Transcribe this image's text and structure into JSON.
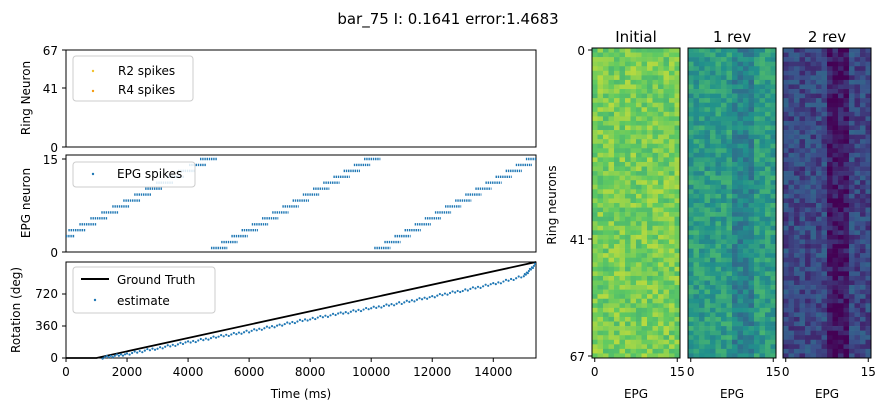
{
  "suptitle": "bar_75 I: 0.1641 error:1.4683",
  "colors": {
    "r2": "#f2c12e",
    "r4": "#f39c12",
    "epg": "#1f77b4",
    "ground_truth": "#000000"
  },
  "chart_data": [
    {
      "type": "scatter",
      "panel": "ring-neuron",
      "ylabel": "Ring Neuron",
      "ylim": [
        0,
        67
      ],
      "xlim": [
        0,
        15400
      ],
      "yticks": [
        "0",
        "41",
        "67"
      ],
      "legend": [
        "R2 spikes",
        "R4 spikes"
      ],
      "legend_position": "top-left",
      "series": [
        {
          "name": "R2 spikes",
          "points": []
        },
        {
          "name": "R4 spikes",
          "points": []
        }
      ]
    },
    {
      "type": "scatter",
      "panel": "epg-neuron",
      "ylabel": "EPG neuron",
      "ylim": [
        0,
        15
      ],
      "xlim": [
        0,
        15400
      ],
      "yticks": [
        "0",
        "15"
      ],
      "legend": [
        "EPG spikes"
      ],
      "legend_position": "top-left",
      "series": [
        {
          "name": "EPG spikes",
          "pattern": "sawtooth",
          "sweeps": [
            {
              "x_start": -1000,
              "x_end": 4750
            },
            {
              "x_start": 4750,
              "x_end": 10100
            },
            {
              "x_start": 10100,
              "x_end": 15400
            }
          ]
        }
      ]
    },
    {
      "type": "line",
      "panel": "rotation",
      "xlabel": "Time (ms)",
      "ylabel": "Rotation (deg)",
      "xlim": [
        0,
        15400
      ],
      "ylim": [
        0,
        1080
      ],
      "xticks": [
        "0",
        "2000",
        "4000",
        "6000",
        "8000",
        "10000",
        "12000",
        "14000"
      ],
      "xtick_values": [
        0,
        2000,
        4000,
        6000,
        8000,
        10000,
        12000,
        14000
      ],
      "yticks": [
        "0",
        "360",
        "720"
      ],
      "ytick_values": [
        0,
        360,
        720
      ],
      "legend": [
        "Ground Truth",
        "estimate"
      ],
      "legend_position": "top-left",
      "series": [
        {
          "name": "Ground Truth",
          "x": [
            0,
            1000,
            15400
          ],
          "y": [
            0,
            0,
            1080
          ]
        },
        {
          "name": "estimate",
          "x": [
            1200,
            2000,
            3000,
            4000,
            5000,
            6000,
            7000,
            8000,
            9000,
            10000,
            11000,
            12000,
            13000,
            14000,
            15000,
            15400
          ],
          "y": [
            5,
            45,
            110,
            175,
            240,
            300,
            370,
            440,
            500,
            560,
            620,
            690,
            760,
            830,
            920,
            1060
          ]
        }
      ]
    },
    {
      "type": "heatmap",
      "panel": "weights",
      "ylabel": "Ring neurons",
      "yticks": [
        "0",
        "41",
        "67"
      ],
      "ytick_values": [
        0,
        41,
        67
      ],
      "xticks": [
        "0",
        "15"
      ],
      "rows": 68,
      "cols": 16,
      "subplots": [
        {
          "title": "Initial",
          "xlabel": "EPG",
          "mean": 0.78,
          "band_drop": 0.0
        },
        {
          "title": "1 rev",
          "xlabel": "EPG",
          "mean": 0.55,
          "band_drop": 0.1
        },
        {
          "title": "2 rev",
          "xlabel": "EPG",
          "mean": 0.22,
          "band_drop": 0.15
        }
      ]
    }
  ]
}
